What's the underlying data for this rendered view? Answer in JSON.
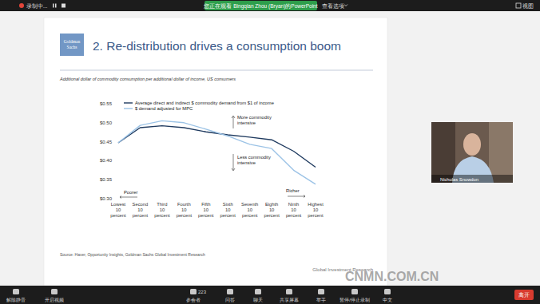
{
  "meeting": {
    "recording": "录制中...",
    "viewing_banner": "您正在观看 Bingqian Zhou (Bryan)的PowerPoint",
    "view_options": "查看选项",
    "view": "视图",
    "speaker": "Nicholas Snowdon",
    "toolbar": [
      {
        "label": "解除静音"
      },
      {
        "label": "开启视频"
      },
      {
        "label": "参会者",
        "count": 223
      },
      {
        "label": "问答"
      },
      {
        "label": "聊天"
      },
      {
        "label": "共享屏幕"
      },
      {
        "label": "举手"
      },
      {
        "label": "暂停/停止录制"
      },
      {
        "label": "中文"
      }
    ],
    "leave": "离开"
  },
  "slide": {
    "logo": "Goldman Sachs",
    "title": "2. Re-distribution drives a consumption boom",
    "footer": "Global Investment Research"
  },
  "watermark": "CNMN.COM.CN",
  "chart_data": {
    "type": "line",
    "subtitle": "Additional dollar of commodity consumption per additional dollar of income, US consumers",
    "source": "Source: Haver, Opportunity Insights, Goldman Sachs Global Investment Research",
    "categories": [
      "Lowest 10 percent",
      "Second 10 percent",
      "Third 10 percent",
      "Fourth 10 percent",
      "Fifth 10 percent",
      "Sixth 10 percent",
      "Seventh 10 percent",
      "Eighth 10 percent",
      "Ninth 10 percent",
      "Highest 10 percent"
    ],
    "series": [
      {
        "name": "Average direct and indirect $ commodity demand from $1 of income",
        "color": "#1f3a5f",
        "values": [
          0.447,
          0.487,
          0.492,
          0.487,
          0.476,
          0.468,
          0.462,
          0.455,
          0.425,
          0.383
        ]
      },
      {
        "name": "$ demand adjusted for MPC",
        "color": "#9cc3e6",
        "values": [
          0.447,
          0.493,
          0.505,
          0.5,
          0.483,
          0.465,
          0.443,
          0.432,
          0.375,
          0.338
        ]
      }
    ],
    "ylim": [
      0.3,
      0.55
    ],
    "yticks": [
      {
        "value": 0.3,
        "label": "$0.30"
      },
      {
        "value": 0.35,
        "label": "$0.35"
      },
      {
        "value": 0.4,
        "label": "$0.40"
      },
      {
        "value": 0.45,
        "label": "$0.45"
      },
      {
        "value": 0.5,
        "label": "$0.50"
      },
      {
        "value": 0.55,
        "label": "$0.55"
      }
    ],
    "annotations": [
      "More commodity intensive",
      "Less commodity intensive",
      "Poorer",
      "Richer"
    ],
    "legend": "upper left",
    "grid": false
  }
}
